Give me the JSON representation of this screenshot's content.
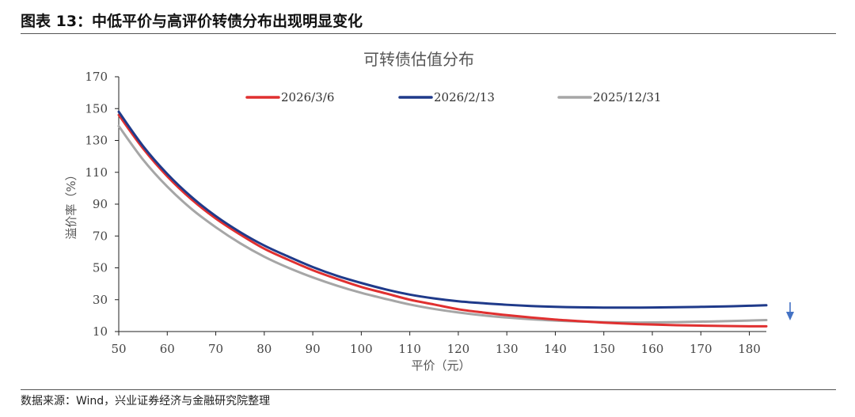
{
  "header": {
    "figure_title": "图表 13：中低平价与高评价转债分布出现明显变化"
  },
  "footer": {
    "source": "数据来源：Wind，兴业证券经济与金融研究院整理"
  },
  "chart_data": {
    "type": "line",
    "title": "可转债估值分布",
    "xlabel": "平价（元）",
    "ylabel": "溢价率（%）",
    "xlim": [
      50,
      183.5
    ],
    "ylim": [
      10,
      170
    ],
    "x_ticks": [
      "50",
      "60",
      "70",
      "80",
      "90",
      "100",
      "110",
      "120",
      "130",
      "140",
      "150",
      "160",
      "170",
      "180"
    ],
    "y_ticks": [
      "10",
      "30",
      "50",
      "70",
      "90",
      "110",
      "130",
      "150",
      "170"
    ],
    "legend_position": "top",
    "grid": false,
    "annotation": "down-arrow",
    "annotation_color": "#4472c4",
    "series": [
      {
        "name": "2026/3/6",
        "color": "#e03030",
        "x": [
          50,
          55,
          60,
          65,
          70,
          75,
          80,
          85,
          90,
          95,
          100,
          105,
          110,
          115,
          120,
          125,
          130,
          135,
          140,
          145,
          150,
          155,
          160,
          165,
          170,
          175,
          180,
          183.5
        ],
        "y": [
          146,
          125,
          107.5,
          93,
          81,
          71,
          62,
          55,
          48.5,
          43,
          38,
          34,
          30,
          27,
          24,
          22,
          20.3,
          18.8,
          17.5,
          16.5,
          15.6,
          14.9,
          14.4,
          14,
          13.7,
          13.5,
          13.3,
          13.3
        ]
      },
      {
        "name": "2026/2/13",
        "color": "#1f3a8a",
        "x": [
          50,
          55,
          60,
          65,
          70,
          75,
          80,
          85,
          90,
          95,
          100,
          105,
          110,
          115,
          120,
          125,
          130,
          135,
          140,
          145,
          150,
          155,
          160,
          165,
          170,
          175,
          180,
          183.5
        ],
        "y": [
          148,
          126.5,
          109,
          94.5,
          82.5,
          72.5,
          64,
          57,
          50.5,
          45,
          40.5,
          36.5,
          33.2,
          30.8,
          29,
          27.8,
          26.8,
          26,
          25.5,
          25.2,
          25,
          25,
          25.1,
          25.3,
          25.5,
          25.8,
          26.2,
          26.5
        ]
      },
      {
        "name": "2025/12/31",
        "color": "#a6a6a6",
        "x": [
          50,
          55,
          60,
          65,
          70,
          75,
          80,
          85,
          90,
          95,
          100,
          105,
          110,
          115,
          120,
          125,
          130,
          135,
          140,
          145,
          150,
          155,
          160,
          165,
          170,
          175,
          180,
          183.5
        ],
        "y": [
          139,
          118,
          101,
          87,
          75.5,
          65.5,
          57,
          50,
          44,
          38.8,
          34.3,
          30.5,
          27,
          24.2,
          22,
          20.2,
          18.8,
          17.7,
          16.9,
          16.3,
          15.9,
          15.7,
          15.7,
          15.9,
          16.2,
          16.5,
          16.9,
          17.2
        ]
      }
    ]
  }
}
